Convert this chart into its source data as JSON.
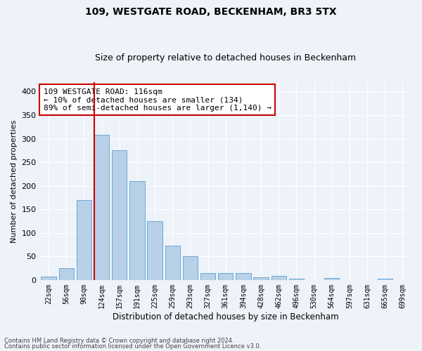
{
  "title1": "109, WESTGATE ROAD, BECKENHAM, BR3 5TX",
  "title2": "Size of property relative to detached houses in Beckenham",
  "xlabel": "Distribution of detached houses by size in Beckenham",
  "ylabel": "Number of detached properties",
  "categories": [
    "22sqm",
    "56sqm",
    "90sqm",
    "124sqm",
    "157sqm",
    "191sqm",
    "225sqm",
    "259sqm",
    "293sqm",
    "327sqm",
    "361sqm",
    "394sqm",
    "428sqm",
    "462sqm",
    "496sqm",
    "530sqm",
    "564sqm",
    "597sqm",
    "631sqm",
    "665sqm",
    "699sqm"
  ],
  "values": [
    7,
    25,
    170,
    308,
    275,
    210,
    125,
    73,
    50,
    15,
    14,
    14,
    5,
    8,
    3,
    0,
    4,
    0,
    0,
    3,
    0
  ],
  "bar_color": "#b8d0e8",
  "bar_edge_color": "#6aaad4",
  "vline_color": "#cc0000",
  "annotation_text": "109 WESTGATE ROAD: 116sqm\n← 10% of detached houses are smaller (134)\n89% of semi-detached houses are larger (1,140) →",
  "annotation_box_color": "white",
  "annotation_box_edge": "#cc0000",
  "ylim": [
    0,
    420
  ],
  "yticks": [
    0,
    50,
    100,
    150,
    200,
    250,
    300,
    350,
    400
  ],
  "footer1": "Contains HM Land Registry data © Crown copyright and database right 2024.",
  "footer2": "Contains public sector information licensed under the Open Government Licence v3.0.",
  "bg_color": "#eef2f9",
  "grid_color": "#ffffff",
  "vline_bar_index": 3
}
